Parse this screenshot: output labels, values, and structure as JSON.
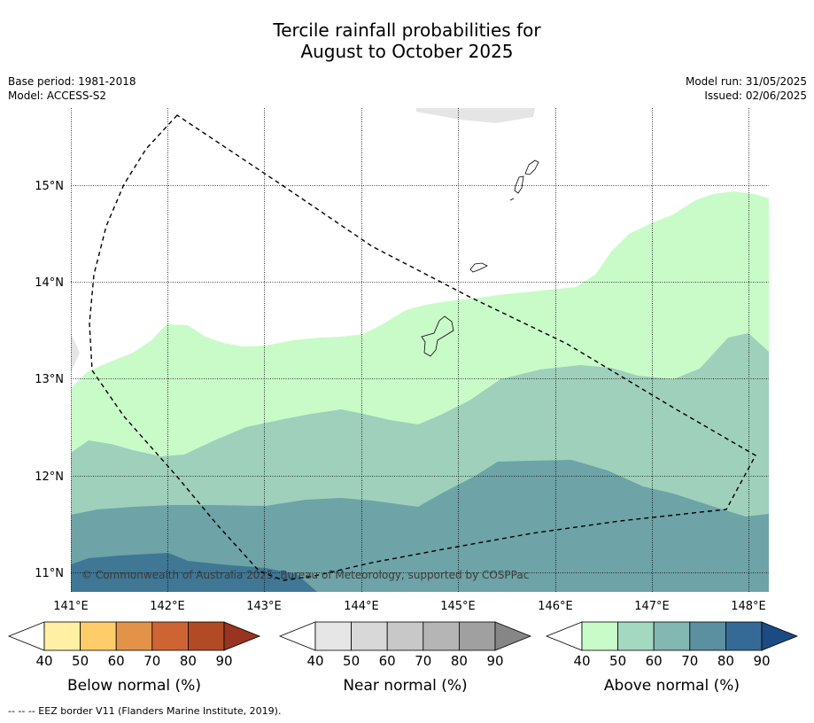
{
  "title_line1": "Tercile rainfall probabilities for",
  "title_line2": "August to October 2025",
  "meta": {
    "base_period": "Base period: 1981-2018",
    "model": "Model: ACCESS-S2",
    "model_run": "Model run: 31/05/2025",
    "issued": "Issued: 02/06/2025"
  },
  "map": {
    "lon_labels": [
      "141°E",
      "142°E",
      "143°E",
      "144°E",
      "145°E",
      "146°E",
      "147°E",
      "148°E"
    ],
    "lat_labels": [
      "15°N",
      "14°N",
      "13°N",
      "12°N",
      "11°N"
    ],
    "copyright": "© Commonwealth of Australia 2025, Bureau of Meteorology, supported by COSPPac",
    "zones": [
      {
        "name": "Above normal 50-60%",
        "color": "#c9fbc9"
      },
      {
        "name": "Above normal 60-70%",
        "color": "#9fd0bb"
      },
      {
        "name": "Above normal 70-80%",
        "color": "#6ea3a7"
      },
      {
        "name": "Above normal 80-90%",
        "color": "#3f7795"
      }
    ]
  },
  "colorbars": [
    {
      "label": "Below normal (%)",
      "ticks": [
        "40",
        "50",
        "60",
        "70",
        "80",
        "90"
      ],
      "colors": [
        "#fff0a4",
        "#fecd69",
        "#e29349",
        "#ce6434",
        "#b24a26",
        "#983420"
      ],
      "low_color": "#ffffff"
    },
    {
      "label": "Near normal (%)",
      "ticks": [
        "40",
        "50",
        "60",
        "70",
        "80",
        "90"
      ],
      "colors": [
        "#e6e6e6",
        "#d8d8d8",
        "#c8c8c8",
        "#b5b5b5",
        "#a0a0a0",
        "#868686"
      ],
      "low_color": "#ffffff"
    },
    {
      "label": "Above normal (%)",
      "ticks": [
        "40",
        "50",
        "60",
        "70",
        "80",
        "90"
      ],
      "colors": [
        "#c9fbc9",
        "#a4d8c0",
        "#83b7b2",
        "#5a909f",
        "#356a97",
        "#1c4a82"
      ],
      "low_color": "#ffffff"
    }
  ],
  "footnote": "--  --  -- EEZ border V11 (Flanders Marine Institute, 2019)."
}
